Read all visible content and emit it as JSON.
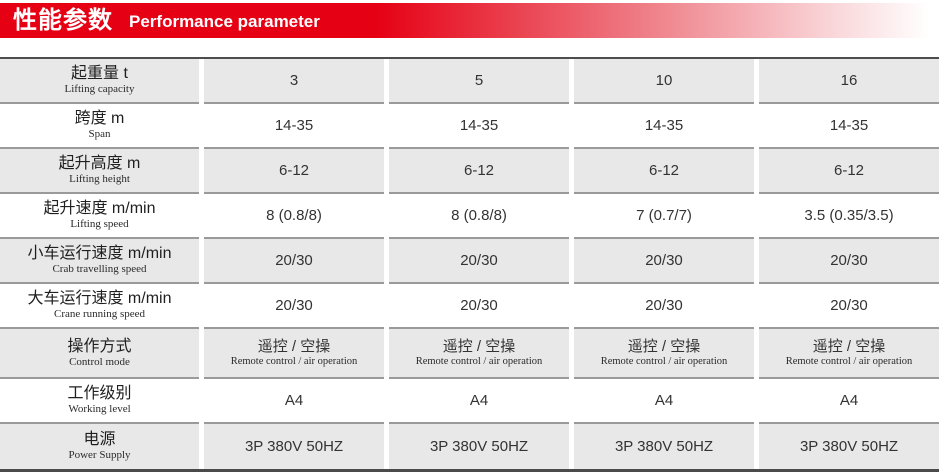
{
  "banner": {
    "title_zh": "性能参数",
    "title_en": "Performance parameter",
    "accent_color": "#e60014"
  },
  "colors": {
    "row_gray": "#e8e8e8",
    "row_white": "#ffffff",
    "separator": "#9a9a9a",
    "outer_border": "#4d4d4d"
  },
  "table": {
    "rows": [
      {
        "label_zh": "起重量 t",
        "label_en": "Lifting capacity",
        "values": [
          "3",
          "5",
          "10",
          "16"
        ]
      },
      {
        "label_zh": "跨度 m",
        "label_en": "Span",
        "values": [
          "14-35",
          "14-35",
          "14-35",
          "14-35"
        ]
      },
      {
        "label_zh": "起升高度 m",
        "label_en": "Lifting height",
        "values": [
          "6-12",
          "6-12",
          "6-12",
          "6-12"
        ]
      },
      {
        "label_zh": "起升速度 m/min",
        "label_en": "Lifting speed",
        "values": [
          "8 (0.8/8)",
          "8 (0.8/8)",
          "7 (0.7/7)",
          "3.5 (0.35/3.5)"
        ]
      },
      {
        "label_zh": "小车运行速度 m/min",
        "label_en": "Crab travelling speed",
        "values": [
          "20/30",
          "20/30",
          "20/30",
          "20/30"
        ]
      },
      {
        "label_zh": "大车运行速度 m/min",
        "label_en": "Crane running speed",
        "values": [
          "20/30",
          "20/30",
          "20/30",
          "20/30"
        ]
      },
      {
        "label_zh": "操作方式",
        "label_en": "Control mode",
        "values": [
          "遥控 / 空操",
          "遥控 / 空操",
          "遥控 / 空操",
          "遥控 / 空操"
        ],
        "values_sub": [
          "Remote control / air operation",
          "Remote control / air operation",
          "Remote control / air operation",
          "Remote control / air operation"
        ]
      },
      {
        "label_zh": "工作级别",
        "label_en": "Working level",
        "values": [
          "A4",
          "A4",
          "A4",
          "A4"
        ]
      },
      {
        "label_zh": "电源",
        "label_en": "Power Supply",
        "values": [
          "3P 380V 50HZ",
          "3P 380V 50HZ",
          "3P 380V 50HZ",
          "3P 380V 50HZ"
        ]
      }
    ]
  }
}
